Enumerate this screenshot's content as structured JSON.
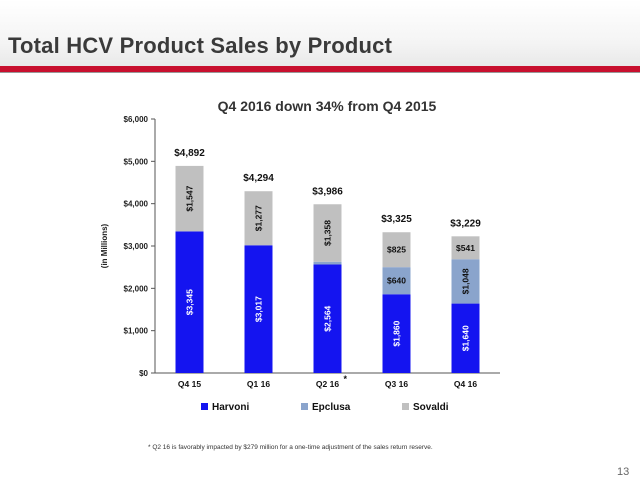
{
  "slide": {
    "title": "Total HCV Product Sales by Product",
    "footnote": "* Q2 16 is favorably impacted by $279 million for a one-time adjustment of the sales return reserve.",
    "page_number": "13",
    "accent_color": "#c8102e"
  },
  "chart_data": {
    "type": "bar",
    "stacked": true,
    "title": "Q4 2016 down 34% from Q4 2015",
    "ylabel": "(in Millions)",
    "ylim": [
      0,
      6000
    ],
    "yticks": [
      0,
      1000,
      2000,
      3000,
      4000,
      5000,
      6000
    ],
    "ytick_labels": [
      "$0",
      "$1,000",
      "$2,000",
      "$3,000",
      "$4,000",
      "$5,000",
      "$6,000"
    ],
    "categories": [
      "Q4 15",
      "Q1 16",
      "Q2 16",
      "Q3 16",
      "Q4 16"
    ],
    "category_note": {
      "index": 2,
      "mark": "*"
    },
    "series": [
      {
        "name": "Harvoni",
        "values": [
          3345,
          3017,
          2564,
          1860,
          1640
        ],
        "labels": [
          "$3,345",
          "$3,017",
          "$2,564",
          "$1,860",
          "$1,640"
        ],
        "color": "#1414f0"
      },
      {
        "name": "Epclusa",
        "values": [
          0,
          0,
          64,
          640,
          1048
        ],
        "labels": [
          "",
          "",
          "",
          "$640",
          "$1,048"
        ],
        "color": "#8aa4cc"
      },
      {
        "name": "Sovaldi",
        "values": [
          1547,
          1277,
          1358,
          825,
          541
        ],
        "labels": [
          "$1,547",
          "$1,277",
          "$1,358",
          "$825",
          "$541"
        ],
        "color": "#c0c0c0"
      }
    ],
    "totals": [
      4892,
      4294,
      3986,
      3325,
      3229
    ],
    "total_labels": [
      "$4,892",
      "$4,294",
      "$3,986",
      "$3,325",
      "$3,229"
    ],
    "grid": false,
    "legend_position": "bottom"
  }
}
